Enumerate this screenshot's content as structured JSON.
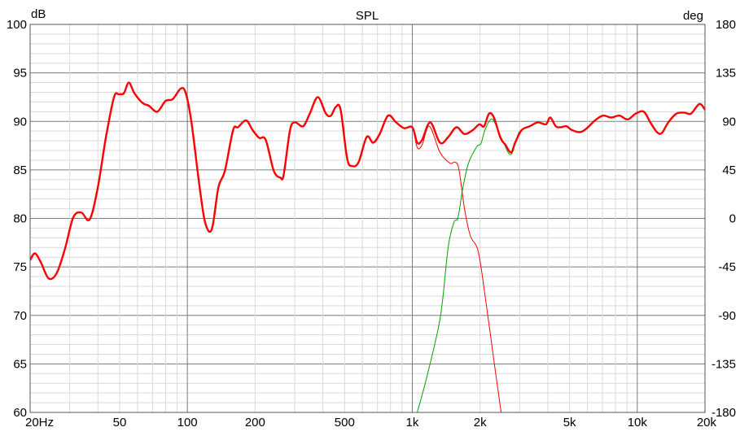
{
  "chart_data": {
    "type": "line",
    "title": "SPL",
    "ylabel": "dB",
    "ylabel_right": "deg",
    "xscale": "log",
    "xlim": [
      20,
      20000
    ],
    "ylim": [
      60,
      100
    ],
    "ylim_right": [
      -180,
      180
    ],
    "grid": true,
    "x_tick_labels": [
      {
        "value": 20,
        "label": "20Hz"
      },
      {
        "value": 50,
        "label": "50"
      },
      {
        "value": 100,
        "label": "100"
      },
      {
        "value": 200,
        "label": "200"
      },
      {
        "value": 500,
        "label": "500"
      },
      {
        "value": 1000,
        "label": "1k"
      },
      {
        "value": 2000,
        "label": "2k"
      },
      {
        "value": 5000,
        "label": "5k"
      },
      {
        "value": 10000,
        "label": "10k"
      },
      {
        "value": 20000,
        "label": "20k"
      }
    ],
    "y_tick_labels": [
      "100",
      "95",
      "90",
      "85",
      "80",
      "75",
      "70",
      "65",
      "60"
    ],
    "y_right_tick_labels": [
      "180",
      "135",
      "90",
      "45",
      "0",
      "-45",
      "-90",
      "-135",
      "-180"
    ],
    "series": [
      {
        "color": "#00a000",
        "style": "thin",
        "x": [
          1052,
          1153,
          1297,
          1362,
          1445,
          1531,
          1596,
          1679,
          1778,
          1935,
          2017,
          2102,
          2228,
          2322,
          2524,
          2748,
          2985,
          3327,
          3614,
          3927,
          4102,
          4345,
          4571,
          4842,
          5128,
          5585,
          5970,
          6486,
          7047,
          7656,
          8337,
          9057,
          9840,
          10690,
          11430,
          12220,
          12850,
          13740,
          14930,
          16220,
          17340,
          18880,
          20000
        ],
        "y": [
          60.0,
          63.4,
          68.4,
          71.5,
          77.1,
          79.6,
          80.1,
          83.2,
          85.7,
          87.4,
          87.7,
          89.1,
          90.2,
          89.9,
          88.0,
          86.6,
          88.9,
          89.5,
          89.9,
          89.7,
          90.4,
          89.5,
          89.4,
          89.5,
          89.1,
          88.9,
          89.3,
          90.1,
          90.6,
          90.4,
          90.6,
          90.2,
          90.8,
          91.0,
          89.9,
          88.9,
          88.8,
          89.9,
          90.8,
          90.9,
          90.8,
          91.8,
          91.2
        ]
      },
      {
        "color": "#ff0000",
        "style": "thin",
        "x": [
          20,
          21,
          22.3,
          24.2,
          26.3,
          28.6,
          31.1,
          33.8,
          36.8,
          40,
          43.4,
          47.2,
          49.6,
          52.2,
          54.9,
          58.2,
          63.2,
          67.6,
          73.5,
          79.9,
          86.1,
          93.6,
          98.4,
          104.3,
          113.4,
          120.2,
          128.5,
          137.4,
          146.8,
          159.7,
          167.9,
          182.5,
          195.1,
          208.5,
          222.9,
          242.3,
          259,
          268,
          286,
          301,
          327,
          350,
          380,
          413,
          435,
          457,
          480,
          513,
          540,
          577,
          627,
          670,
          716,
          780,
          847,
          920,
          1000,
          1052,
          1106,
          1191,
          1328,
          1469,
          1545,
          1610,
          1706,
          1811,
          1967,
          2138,
          2322,
          2483
        ],
        "y": [
          75.7,
          76.4,
          75.5,
          73.8,
          74.4,
          76.9,
          80.1,
          80.6,
          79.9,
          83.2,
          88.3,
          92.5,
          92.8,
          92.9,
          94.0,
          92.9,
          91.9,
          91.6,
          91.0,
          92.1,
          92.3,
          93.4,
          92.9,
          89.9,
          83.2,
          79.5,
          78.9,
          83.2,
          84.9,
          89.1,
          89.4,
          90.1,
          89.1,
          88.3,
          88.1,
          84.9,
          84.2,
          84.5,
          89.1,
          89.9,
          89.5,
          90.8,
          92.5,
          90.8,
          90.6,
          91.5,
          91.2,
          86.2,
          85.4,
          85.8,
          88.4,
          87.8,
          88.7,
          90.6,
          89.9,
          89.3,
          89.4,
          87.3,
          87.6,
          89.5,
          86.8,
          85.7,
          85.8,
          85.1,
          81.0,
          78.2,
          76.5,
          70.9,
          64.8,
          60.0
        ]
      },
      {
        "color": "#ff0000",
        "style": "thick",
        "x": [
          20,
          21,
          22.3,
          24.2,
          26.3,
          28.6,
          31.1,
          33.8,
          36.8,
          40,
          43.4,
          47.2,
          49.6,
          52.2,
          54.9,
          58.2,
          63.2,
          67.6,
          73.5,
          79.9,
          86.1,
          93.6,
          98.4,
          104.3,
          113.4,
          120.2,
          128.5,
          137.4,
          146.8,
          159.7,
          167.9,
          182.5,
          195.1,
          208.5,
          222.9,
          242.3,
          259,
          268,
          286,
          301,
          327,
          350,
          380,
          413,
          435,
          457,
          480,
          513,
          540,
          577,
          627,
          670,
          716,
          780,
          847,
          920,
          1000,
          1052,
          1106,
          1202,
          1328,
          1445,
          1570,
          1706,
          1855,
          1984,
          2084,
          2193,
          2305,
          2465,
          2590,
          2748,
          2864,
          3062,
          3327,
          3614,
          3927,
          4102,
          4345,
          4571,
          4842,
          5128,
          5585,
          5970,
          6486,
          7047,
          7656,
          8337,
          9057,
          9840,
          10690,
          11430,
          12220,
          12850,
          13740,
          14930,
          16220,
          17340,
          18880,
          20000
        ],
        "y": [
          75.7,
          76.4,
          75.5,
          73.8,
          74.4,
          76.9,
          80.1,
          80.6,
          79.9,
          83.2,
          88.3,
          92.5,
          92.8,
          92.9,
          94.0,
          92.9,
          91.9,
          91.6,
          91.0,
          92.1,
          92.3,
          93.4,
          92.9,
          89.9,
          83.2,
          79.5,
          78.9,
          83.2,
          84.9,
          89.1,
          89.4,
          90.1,
          89.1,
          88.3,
          88.1,
          84.9,
          84.2,
          84.5,
          89.1,
          89.9,
          89.5,
          90.8,
          92.5,
          90.8,
          90.6,
          91.5,
          91.2,
          86.2,
          85.4,
          85.8,
          88.4,
          87.8,
          88.7,
          90.6,
          89.9,
          89.3,
          89.4,
          87.8,
          88.1,
          89.9,
          87.8,
          88.4,
          89.4,
          88.7,
          89.1,
          89.7,
          89.5,
          90.8,
          90.4,
          88.3,
          87.6,
          86.8,
          87.8,
          89.1,
          89.5,
          89.9,
          89.7,
          90.4,
          89.5,
          89.4,
          89.5,
          89.1,
          88.9,
          89.3,
          90.1,
          90.6,
          90.4,
          90.6,
          90.2,
          90.8,
          91.0,
          89.9,
          88.9,
          88.8,
          89.9,
          90.8,
          90.9,
          90.8,
          91.8,
          91.2
        ]
      }
    ]
  }
}
